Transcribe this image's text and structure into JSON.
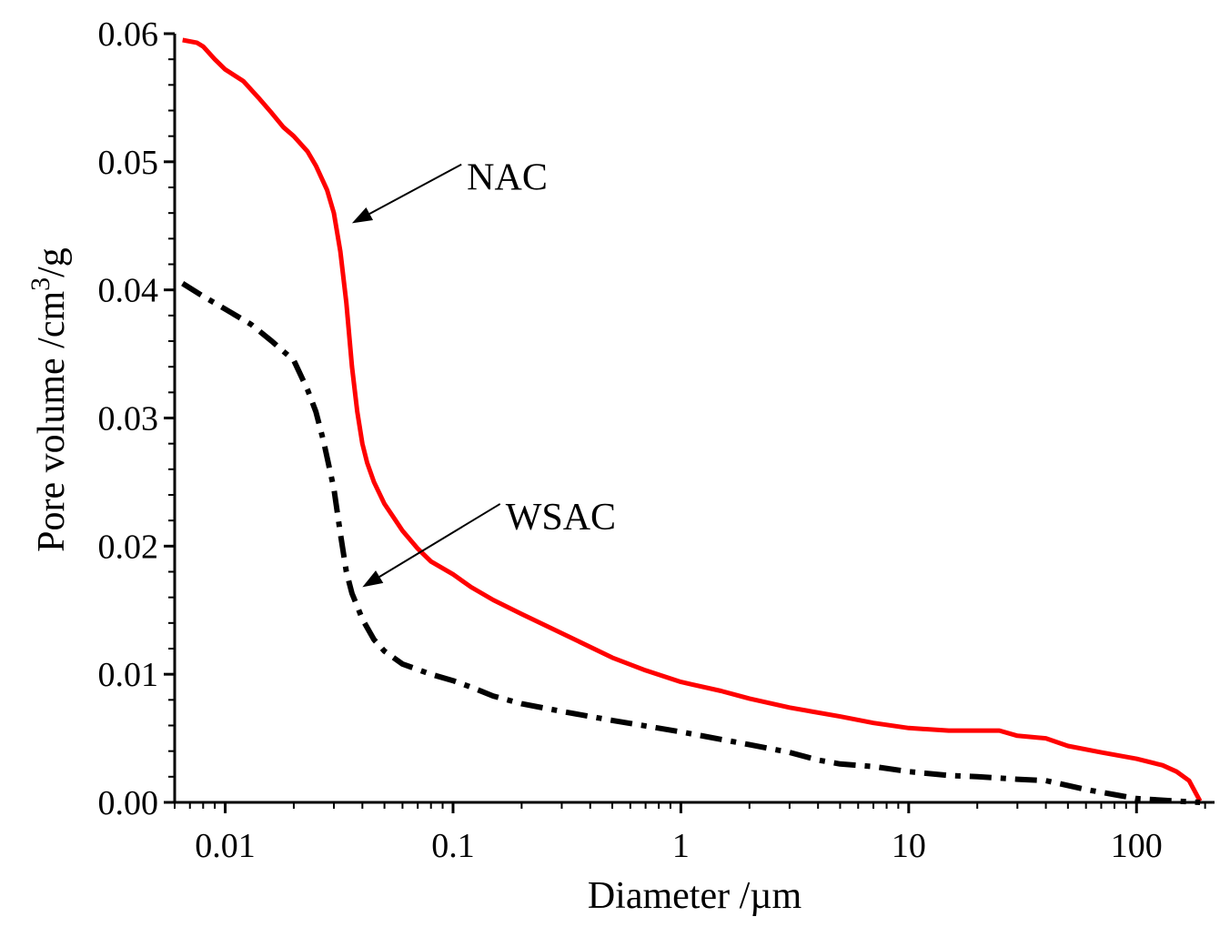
{
  "chart_data": {
    "type": "line",
    "xscale": "log",
    "xlim": [
      0.006,
      220
    ],
    "ylim": [
      0,
      0.06
    ],
    "xlabel": "Diameter /µm",
    "ylabel_prefix": "Pore volume /cm",
    "ylabel_sup": "3",
    "ylabel_suffix": "/g",
    "x_ticks": [
      0.01,
      0.1,
      1,
      10,
      100
    ],
    "x_tick_labels": [
      "0.01",
      "0.1",
      "1",
      "10",
      "100"
    ],
    "y_ticks": [
      0,
      0.01,
      0.02,
      0.03,
      0.04,
      0.05,
      0.06
    ],
    "y_tick_labels": [
      "0.00",
      "0.01",
      "0.02",
      "0.03",
      "0.04",
      "0.05",
      "0.06"
    ],
    "series": [
      {
        "name": "NAC",
        "color": "#ff0000",
        "style": "solid",
        "x": [
          0.0065,
          0.0075,
          0.008,
          0.009,
          0.01,
          0.012,
          0.014,
          0.016,
          0.018,
          0.02,
          0.023,
          0.025,
          0.028,
          0.03,
          0.032,
          0.034,
          0.036,
          0.038,
          0.04,
          0.042,
          0.045,
          0.05,
          0.055,
          0.06,
          0.07,
          0.08,
          0.1,
          0.12,
          0.15,
          0.2,
          0.3,
          0.5,
          0.7,
          1,
          1.5,
          2,
          3,
          5,
          7,
          10,
          15,
          20,
          25,
          30,
          40,
          50,
          70,
          100,
          130,
          150,
          170,
          190
        ],
        "y": [
          0.0595,
          0.0593,
          0.059,
          0.058,
          0.0572,
          0.0563,
          0.055,
          0.0538,
          0.0527,
          0.052,
          0.0508,
          0.0497,
          0.0478,
          0.046,
          0.043,
          0.039,
          0.034,
          0.0305,
          0.028,
          0.0265,
          0.025,
          0.0233,
          0.0222,
          0.0212,
          0.0198,
          0.0188,
          0.0178,
          0.0168,
          0.0158,
          0.0147,
          0.0132,
          0.0113,
          0.0103,
          0.0094,
          0.0087,
          0.0081,
          0.0074,
          0.0067,
          0.0062,
          0.0058,
          0.0056,
          0.0056,
          0.0056,
          0.0052,
          0.005,
          0.0044,
          0.0039,
          0.0034,
          0.0029,
          0.0024,
          0.0017,
          0.0001
        ]
      },
      {
        "name": "WSAC",
        "color": "#000000",
        "style": "dash-dot",
        "x": [
          0.0065,
          0.008,
          0.01,
          0.013,
          0.016,
          0.02,
          0.023,
          0.025,
          0.027,
          0.03,
          0.032,
          0.034,
          0.036,
          0.038,
          0.04,
          0.045,
          0.05,
          0.06,
          0.08,
          0.1,
          0.12,
          0.15,
          0.2,
          0.3,
          0.5,
          1,
          2,
          3,
          4,
          5,
          7,
          10,
          15,
          20,
          30,
          40,
          60,
          80,
          100,
          150,
          190
        ],
        "y": [
          0.0405,
          0.0395,
          0.0385,
          0.0373,
          0.036,
          0.0345,
          0.0322,
          0.0305,
          0.0282,
          0.0245,
          0.021,
          0.018,
          0.0163,
          0.0153,
          0.0143,
          0.0127,
          0.0118,
          0.0108,
          0.01,
          0.0095,
          0.009,
          0.0083,
          0.0077,
          0.0071,
          0.0064,
          0.0055,
          0.0045,
          0.0039,
          0.0033,
          0.003,
          0.0028,
          0.0024,
          0.0021,
          0.002,
          0.0018,
          0.0017,
          0.001,
          0.0006,
          0.0003,
          0.0001,
          0
        ]
      }
    ],
    "annotations": [
      {
        "text": "NAC",
        "target": {
          "x": 0.036,
          "y": 0.0452
        },
        "label_pos": {
          "x": 0.115,
          "y": 0.0488
        }
      },
      {
        "text": "WSAC",
        "target": {
          "x": 0.04,
          "y": 0.0168
        },
        "label_pos": {
          "x": 0.17,
          "y": 0.0223
        }
      }
    ]
  }
}
